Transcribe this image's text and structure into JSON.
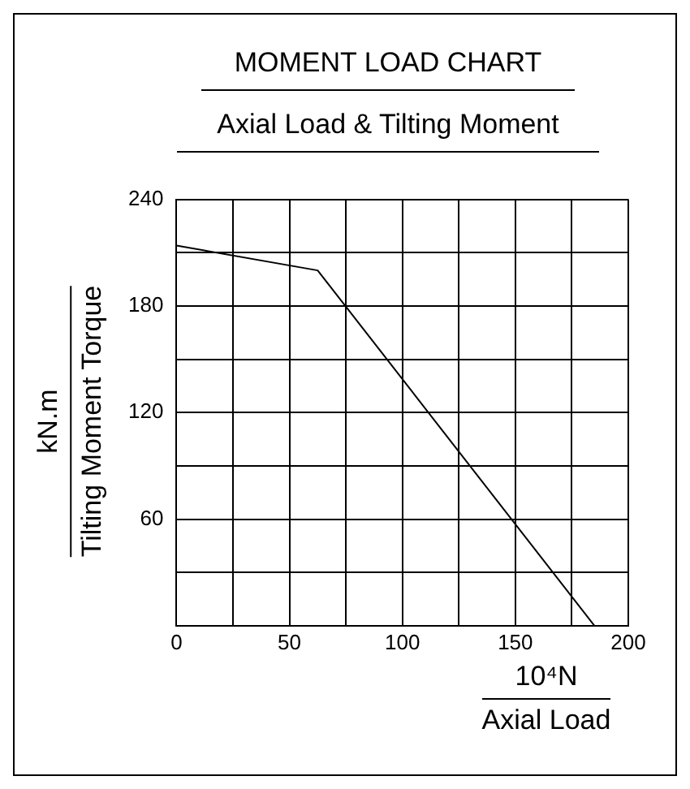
{
  "chart_data": {
    "type": "line",
    "title": "MOMENT LOAD CHART",
    "subtitle": "Axial Load & Tilting Moment",
    "xlabel": "10⁴N\nAxial Load",
    "ylabel": "kN.m\nTilting Moment Torque",
    "x": [
      0,
      62.5,
      185
    ],
    "series": [
      {
        "color": "#000000",
        "values": [
          214,
          200,
          0
        ]
      }
    ],
    "xlim": [
      0,
      200
    ],
    "ylim": [
      0,
      240
    ],
    "xticks": [
      0,
      {
        "value": 25,
        "label": null
      },
      50,
      {
        "value": 75,
        "label": null
      },
      100,
      {
        "value": 125,
        "label": null
      },
      150,
      {
        "value": 175,
        "label": null
      },
      200
    ],
    "yticks": [
      {
        "value": 0,
        "label": null
      },
      {
        "value": 30,
        "label": null
      },
      60,
      {
        "value": 90,
        "label": null
      },
      120,
      {
        "value": 150,
        "label": null
      },
      180,
      {
        "value": 210,
        "label": null
      },
      240
    ],
    "grid": true,
    "marker": "none",
    "line_style": "solid"
  }
}
